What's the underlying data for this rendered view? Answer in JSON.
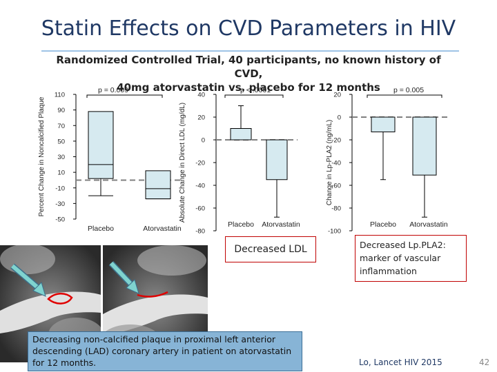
{
  "slide": {
    "title": "Statin Effects on CVD Parameters in HIV",
    "subtitle_line1": "Randomized Controlled Trial, 40 participants, no known history of CVD,",
    "subtitle_line2": "40mg atorvastatin vs. placebo for 12 months",
    "ldl_callout": "Decreased LDL",
    "lppla2_callout": "Decreased Lp.PLA2: marker of vascular inflammation",
    "caption": "Decreasing non-calcified plaque in proximal left anterior descending (LAD) coronary artery in patient  on atorvastatin for 12 months.",
    "citation": "Lo, Lancet HIV 2015",
    "page_number": "42"
  },
  "colors": {
    "box_fill": "#d6eaf0",
    "box_stroke": "#000000",
    "reference_line": "#7f7f7f",
    "callout_border": "#c00000",
    "caption_fill": "#87b4d6",
    "arrow": "#7fd3cf"
  },
  "chart_data": [
    {
      "type": "box",
      "ylabel": "Percent Change in Noncalcified Plaque",
      "ylim": [
        -50,
        110
      ],
      "yticks": [
        -50,
        -30,
        -10,
        10,
        30,
        50,
        70,
        90,
        110
      ],
      "ytick_labels": [
        "-50",
        "-30",
        "-10",
        "10",
        "30",
        "50",
        "70",
        "90",
        "110"
      ],
      "reference_line": 0,
      "annotation": "p = 0.009",
      "categories": [
        "Placebo",
        "Atorvastatin"
      ],
      "series": [
        {
          "low": -20,
          "q1": 2,
          "median": 20,
          "q3": 88,
          "high": 88
        },
        {
          "low": -24,
          "q1": -24,
          "median": -11,
          "q3": 12,
          "high": 12
        }
      ]
    },
    {
      "type": "bar",
      "ylabel": "Absolute Change in Direct LDL (mg/dL)",
      "ylim": [
        -80,
        40
      ],
      "yticks": [
        -80,
        -60,
        -40,
        -20,
        0,
        20,
        40
      ],
      "ytick_labels": [
        "-80",
        "-60",
        "-40",
        "-20",
        "0",
        "20",
        "40"
      ],
      "reference_line": 0,
      "annotation": "p < .0001",
      "categories": [
        "Placebo",
        "Atorvastatin"
      ],
      "values": [
        10,
        -35
      ],
      "error_bars": [
        [
          0,
          30
        ],
        [
          -35,
          -68
        ]
      ]
    },
    {
      "type": "bar",
      "ylabel": "Change in Lp-PLA2 (ng/mL)",
      "ylim": [
        -100,
        20
      ],
      "yticks": [
        -100,
        -80,
        -60,
        -40,
        -20,
        0,
        20
      ],
      "ytick_labels": [
        "-100",
        "-80",
        "-60",
        "-40",
        "-20",
        "0",
        "20"
      ],
      "reference_line": 0,
      "annotation": "p = 0.005",
      "categories": [
        "Placebo",
        "Atorvastatin"
      ],
      "values": [
        -13,
        -51
      ],
      "error_bars": [
        [
          -13,
          -55
        ],
        [
          -51,
          -88
        ]
      ]
    }
  ]
}
